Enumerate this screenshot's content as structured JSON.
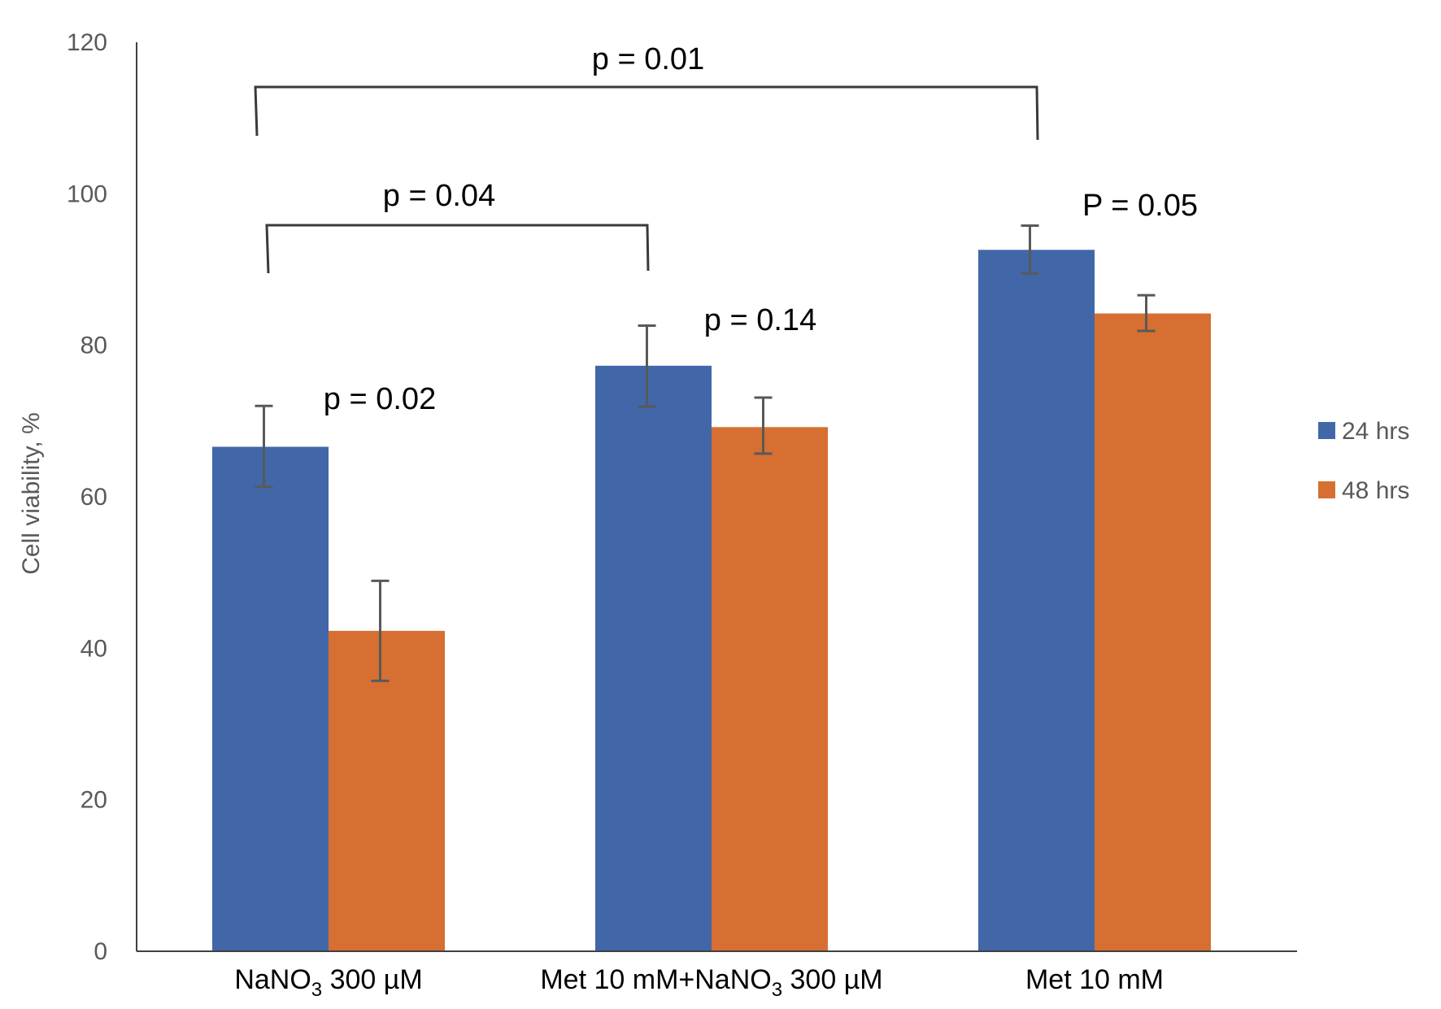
{
  "chart_data": {
    "type": "bar",
    "title": "",
    "xlabel": "",
    "ylabel": "Cell viability,  %",
    "ylim": [
      0,
      120
    ],
    "yticks": [
      0,
      20,
      40,
      60,
      80,
      100,
      120
    ],
    "grid": false,
    "legend_position": "right",
    "categories": [
      {
        "main": "NaNO",
        "sub": "3",
        "rest": " 300 µM"
      },
      {
        "main": "Met 10 mM+NaNO",
        "sub": "3",
        "rest": " 300 µM"
      },
      {
        "main": "Met 10 mM",
        "sub": "",
        "rest": ""
      }
    ],
    "category_labels": [
      "NaNO3 300 µM",
      "Met 10 mM+NaNO3 300 µM",
      "Met 10 mM"
    ],
    "series": [
      {
        "name": "24 hrs",
        "color": "#4267A8",
        "values": [
          66.6,
          77.3,
          92.6
        ],
        "error_low": [
          61.3,
          71.9,
          89.5
        ],
        "error_high": [
          72.0,
          82.6,
          95.8
        ]
      },
      {
        "name": "48 hrs",
        "color": "#D66F31",
        "values": [
          42.3,
          69.2,
          84.2
        ],
        "error_low": [
          35.7,
          65.7,
          81.9
        ],
        "error_high": [
          48.9,
          73.1,
          86.6
        ]
      }
    ],
    "annotations": [
      {
        "text": "p = 0.02",
        "group": 0,
        "kind": "pair"
      },
      {
        "text": "p = 0.14",
        "group": 1,
        "kind": "pair"
      },
      {
        "text": "P = 0.05",
        "group": 2,
        "kind": "pair"
      },
      {
        "text": "p = 0.04",
        "kind": "bracket",
        "from_group": 0,
        "to_group": 1,
        "level": 105
      },
      {
        "text": "p = 0.01",
        "kind": "bracket",
        "from_group": 0,
        "to_group": 2,
        "level": 114
      }
    ]
  }
}
